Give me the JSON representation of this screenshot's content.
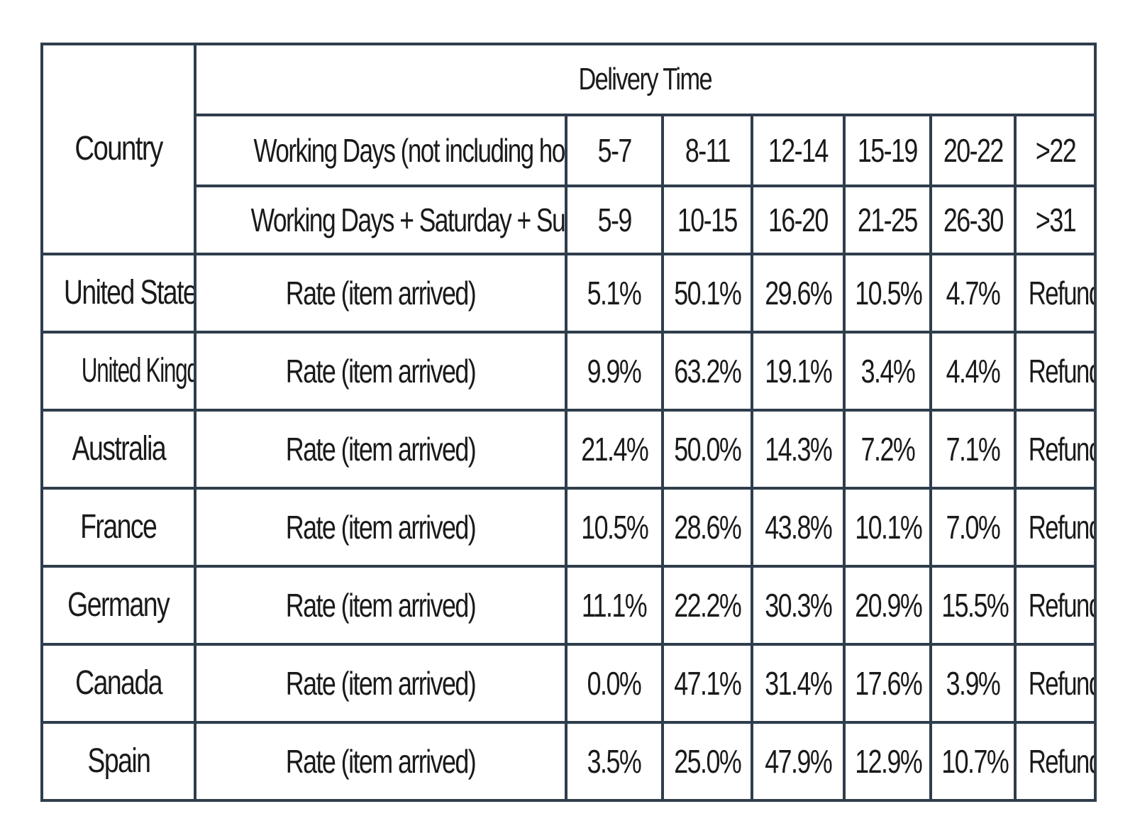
{
  "chart_data": {
    "type": "table",
    "header": {
      "country_label": "Country",
      "group_label": "Delivery Time",
      "working_days_label": "Working Days (not including holiday)",
      "working_days_ranges": [
        "5-7",
        "8-11",
        "12-14",
        "15-19",
        "20-22",
        ">22"
      ],
      "calendar_days_label": "Working Days + Saturday + Sunday",
      "calendar_days_ranges": [
        "5-9",
        "10-15",
        "16-20",
        "21-25",
        "26-30",
        ">31"
      ]
    },
    "rows": [
      {
        "country": "United States",
        "label": "Rate (item arrived)",
        "values": [
          "5.1%",
          "50.1%",
          "29.6%",
          "10.5%",
          "4.7%",
          "Refund"
        ]
      },
      {
        "country": "United Kingdom",
        "label": "Rate (item arrived)",
        "values": [
          "9.9%",
          "63.2%",
          "19.1%",
          "3.4%",
          "4.4%",
          "Refund"
        ]
      },
      {
        "country": "Australia",
        "label": "Rate (item arrived)",
        "values": [
          "21.4%",
          "50.0%",
          "14.3%",
          "7.2%",
          "7.1%",
          "Refund"
        ]
      },
      {
        "country": "France",
        "label": "Rate (item arrived)",
        "values": [
          "10.5%",
          "28.6%",
          "43.8%",
          "10.1%",
          "7.0%",
          "Refund"
        ]
      },
      {
        "country": "Germany",
        "label": "Rate (item arrived)",
        "values": [
          "11.1%",
          "22.2%",
          "30.3%",
          "20.9%",
          "15.5%",
          "Refund"
        ]
      },
      {
        "country": "Canada",
        "label": "Rate (item arrived)",
        "values": [
          "0.0%",
          "47.1%",
          "31.4%",
          "17.6%",
          "3.9%",
          "Refund"
        ]
      },
      {
        "country": "Spain",
        "label": "Rate (item arrived)",
        "values": [
          "3.5%",
          "25.0%",
          "47.9%",
          "12.9%",
          "10.7%",
          "Refund"
        ]
      }
    ]
  }
}
